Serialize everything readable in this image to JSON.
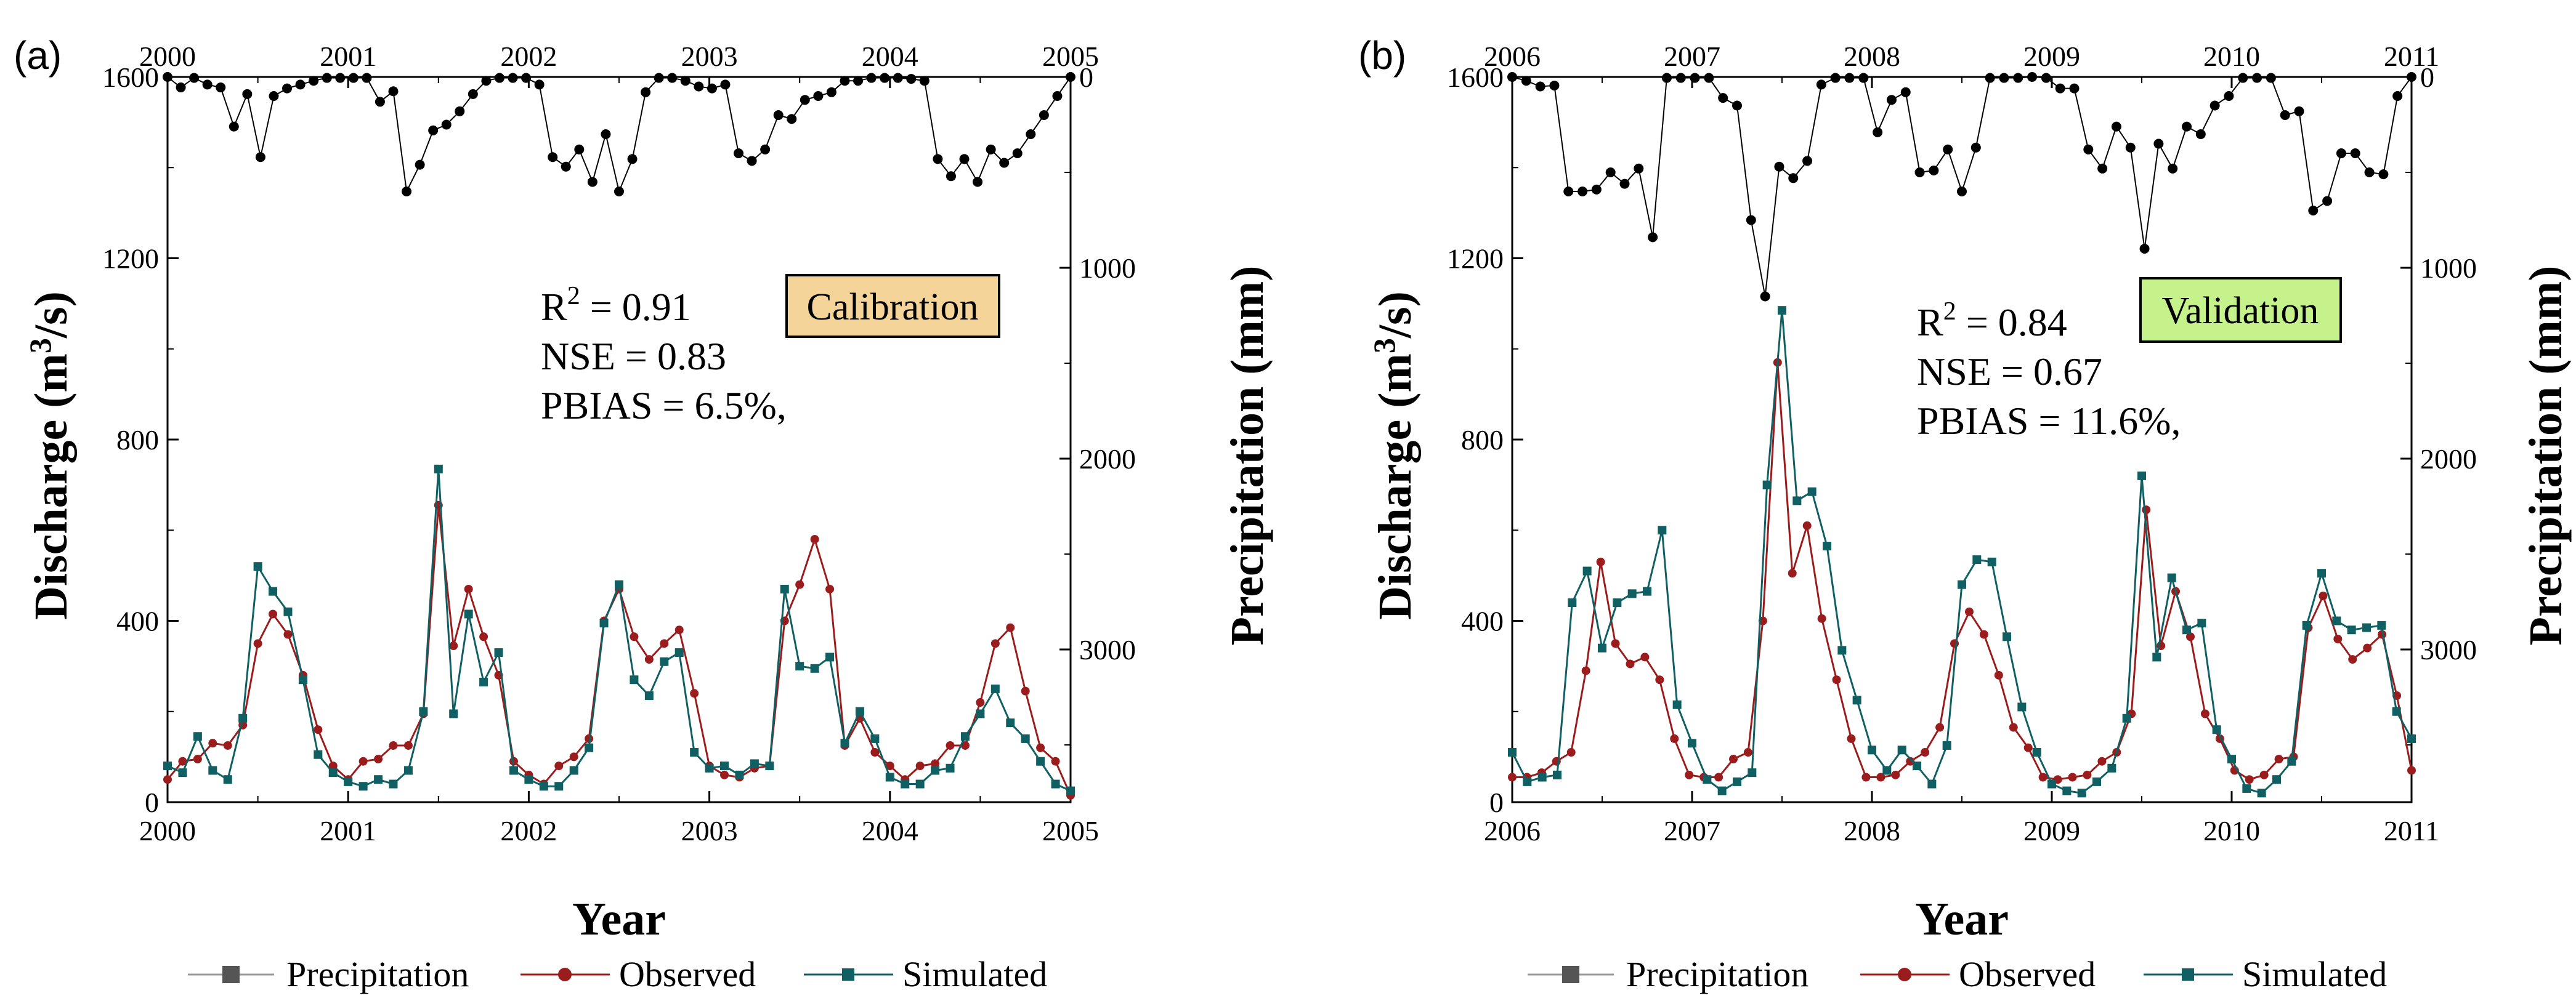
{
  "colors": {
    "precipitation": "#000000",
    "observed": "#9b1c1c",
    "simulated": "#0f5f63",
    "calibration_box": "#f5d49a",
    "validation_box": "#c5f28a",
    "legend_precip": "#555555"
  },
  "legend": {
    "precipitation": "Precipitation",
    "observed": "Observed",
    "simulated": "Simulated"
  },
  "chart_data": [
    {
      "type": "line",
      "panel_label": "(a)",
      "title": "",
      "xlabel": "Year",
      "ylabel": "Discharge (m3/s)",
      "ylabel_parts": [
        "Discharge (m",
        "3",
        "/s)"
      ],
      "y2label": "Precipitation (mm)",
      "xlim": [
        2000,
        2005
      ],
      "ylim": [
        0,
        1600
      ],
      "y2lim": [
        0,
        3800
      ],
      "x_ticks": [
        "2000",
        "2001",
        "2002",
        "2003",
        "2004",
        "2005"
      ],
      "y_ticks": [
        "0",
        "400",
        "800",
        "1200",
        "1600"
      ],
      "y2_ticks": [
        "0",
        "1000",
        "2000",
        "3000"
      ],
      "box_label": "Calibration",
      "stats": {
        "r2_parts": [
          "R",
          "2",
          " = 0.91"
        ],
        "nse": "NSE = 0.83",
        "pbias": "PBIAS = 6.5%,"
      },
      "start_year": 2000,
      "series": [
        {
          "name": "Precipitation",
          "axis": "right",
          "values": [
            0,
            55,
            5,
            40,
            55,
            260,
            90,
            420,
            100,
            60,
            40,
            20,
            5,
            5,
            5,
            5,
            130,
            75,
            600,
            460,
            280,
            250,
            180,
            90,
            20,
            5,
            5,
            5,
            40,
            420,
            470,
            380,
            550,
            300,
            600,
            430,
            80,
            5,
            5,
            20,
            50,
            60,
            40,
            400,
            440,
            380,
            200,
            220,
            120,
            100,
            80,
            20,
            20,
            5,
            5,
            5,
            10,
            20,
            430,
            520,
            430,
            550,
            380,
            450,
            400,
            300,
            200,
            100,
            0
          ]
        },
        {
          "name": "Observed",
          "axis": "left",
          "values": [
            50,
            90,
            95,
            130,
            125,
            170,
            350,
            415,
            370,
            280,
            160,
            80,
            50,
            90,
            95,
            125,
            125,
            195,
            655,
            345,
            470,
            365,
            280,
            90,
            60,
            40,
            80,
            100,
            140,
            400,
            470,
            365,
            315,
            350,
            380,
            240,
            80,
            60,
            55,
            75,
            80,
            400,
            480,
            580,
            470,
            125,
            185,
            110,
            80,
            50,
            80,
            85,
            125,
            125,
            220,
            350,
            385,
            245,
            120,
            90,
            15
          ]
        },
        {
          "name": "Simulated",
          "axis": "left",
          "values": [
            80,
            65,
            145,
            70,
            50,
            185,
            520,
            465,
            420,
            270,
            105,
            65,
            45,
            35,
            50,
            40,
            70,
            200,
            735,
            195,
            415,
            265,
            330,
            70,
            50,
            35,
            35,
            70,
            120,
            395,
            480,
            270,
            235,
            310,
            330,
            110,
            75,
            80,
            60,
            85,
            80,
            470,
            300,
            295,
            320,
            130,
            200,
            140,
            55,
            40,
            40,
            70,
            75,
            145,
            195,
            250,
            175,
            140,
            90,
            40,
            25
          ]
        }
      ]
    },
    {
      "type": "line",
      "panel_label": "(b)",
      "title": "",
      "xlabel": "Year",
      "ylabel": "Discharge (m3/s)",
      "ylabel_parts": [
        "Discharge (m",
        "3",
        "/s)"
      ],
      "y2label": "Precipitation (mm)",
      "xlim": [
        2006,
        2011
      ],
      "ylim": [
        0,
        1600
      ],
      "y2lim": [
        0,
        3800
      ],
      "x_ticks": [
        "2006",
        "2007",
        "2008",
        "2009",
        "2010",
        "2011"
      ],
      "y_ticks": [
        "0",
        "400",
        "800",
        "1200",
        "1600"
      ],
      "y2_ticks": [
        "0",
        "1000",
        "2000",
        "3000"
      ],
      "box_label": "Validation",
      "stats": {
        "r2_parts": [
          "R",
          "2",
          " = 0.84"
        ],
        "nse": "NSE = 0.67",
        "pbias": "PBIAS = 11.6%,"
      },
      "start_year": 2006,
      "series": [
        {
          "name": "Precipitation",
          "axis": "right",
          "values": [
            0,
            20,
            50,
            45,
            600,
            600,
            590,
            500,
            560,
            480,
            840,
            5,
            5,
            5,
            5,
            110,
            150,
            750,
            1150,
            470,
            530,
            440,
            40,
            5,
            5,
            5,
            290,
            120,
            80,
            500,
            490,
            380,
            600,
            370,
            5,
            5,
            5,
            0,
            5,
            60,
            60,
            380,
            480,
            260,
            370,
            900,
            350,
            480,
            260,
            300,
            150,
            100,
            5,
            5,
            5,
            200,
            180,
            700,
            650,
            400,
            400,
            500,
            510,
            100,
            0
          ]
        },
        {
          "name": "Observed",
          "axis": "left",
          "values": [
            55,
            55,
            65,
            90,
            110,
            290,
            530,
            350,
            305,
            320,
            270,
            140,
            60,
            55,
            55,
            95,
            110,
            400,
            970,
            505,
            610,
            405,
            270,
            140,
            55,
            55,
            60,
            90,
            110,
            165,
            350,
            420,
            370,
            280,
            165,
            120,
            55,
            50,
            55,
            60,
            90,
            110,
            195,
            645,
            345,
            465,
            365,
            195,
            140,
            70,
            50,
            60,
            95,
            100,
            385,
            455,
            360,
            315,
            340,
            370,
            235,
            70
          ]
        },
        {
          "name": "Simulated",
          "axis": "left",
          "values": [
            110,
            45,
            55,
            60,
            440,
            510,
            340,
            440,
            460,
            465,
            600,
            215,
            130,
            50,
            25,
            45,
            65,
            700,
            1085,
            665,
            685,
            565,
            335,
            225,
            115,
            70,
            115,
            80,
            40,
            125,
            480,
            535,
            530,
            365,
            210,
            110,
            40,
            25,
            20,
            45,
            75,
            185,
            720,
            320,
            495,
            380,
            395,
            160,
            95,
            30,
            20,
            50,
            90,
            390,
            505,
            400,
            380,
            385,
            390,
            200,
            140
          ]
        }
      ]
    }
  ]
}
